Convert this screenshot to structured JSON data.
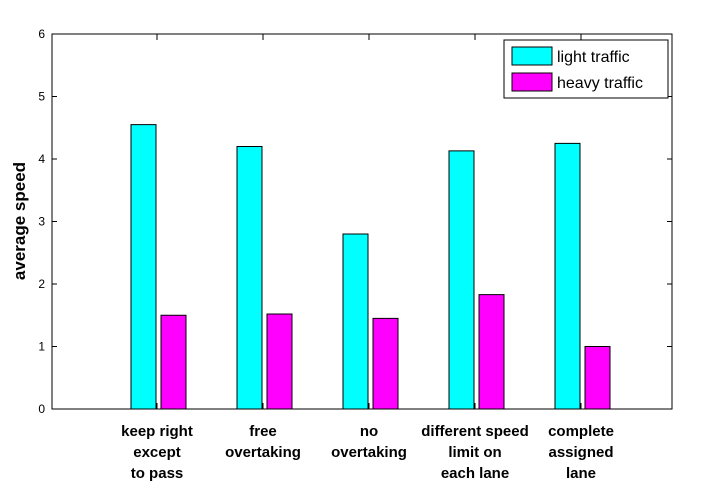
{
  "chart_data": {
    "type": "bar",
    "categories": [
      [
        "keep right",
        "except",
        "to pass"
      ],
      [
        "free",
        "overtaking"
      ],
      [
        "no",
        "overtaking"
      ],
      [
        "different speed",
        "limit on",
        "each lane"
      ],
      [
        "complete",
        "assigned",
        "lane"
      ]
    ],
    "series": [
      {
        "name": "light traffic",
        "color": "#00ffff",
        "values": [
          4.55,
          4.2,
          2.8,
          4.13,
          4.25
        ]
      },
      {
        "name": "heavy traffic",
        "color": "#ff00ff",
        "values": [
          1.5,
          1.52,
          1.45,
          1.83,
          1.0
        ]
      }
    ],
    "xlabel": "",
    "ylabel": "average speed",
    "ylim": [
      0,
      6
    ],
    "yticks": [
      0,
      1,
      2,
      3,
      4,
      5,
      6
    ],
    "grid": false,
    "legend_position": "top-right"
  }
}
